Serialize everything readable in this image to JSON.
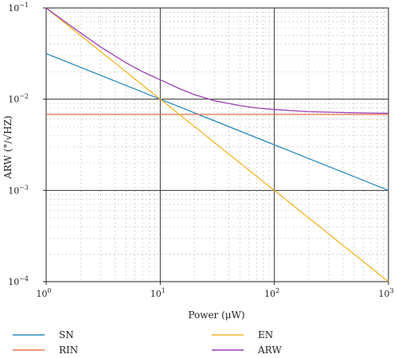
{
  "chart_data": {
    "type": "line",
    "title": "",
    "xlabel": "Power (μW)",
    "ylabel": "ARW (°/√HZ)",
    "x_scale": "log",
    "y_scale": "log",
    "xlim": [
      1,
      1000
    ],
    "ylim": [
      0.0001,
      0.1
    ],
    "x_ticks": [
      {
        "value": 1,
        "base": "10",
        "exp": "0"
      },
      {
        "value": 10,
        "base": "10",
        "exp": "1"
      },
      {
        "value": 100,
        "base": "10",
        "exp": "2"
      },
      {
        "value": 1000,
        "base": "10",
        "exp": "3"
      }
    ],
    "y_ticks": [
      {
        "value": 0.0001,
        "base": "10",
        "exp": "−4"
      },
      {
        "value": 0.001,
        "base": "10",
        "exp": "−3"
      },
      {
        "value": 0.01,
        "base": "10",
        "exp": "−2"
      },
      {
        "value": 0.1,
        "base": "10",
        "exp": "−1"
      }
    ],
    "grid": {
      "major": true,
      "minor": "dotted"
    },
    "legend_position": "bottom",
    "series": [
      {
        "name": "SN",
        "color": "#2b8cbe",
        "points": [
          [
            1,
            0.0316
          ],
          [
            10,
            0.01
          ],
          [
            100,
            0.00316
          ],
          [
            1000,
            0.001
          ]
        ]
      },
      {
        "name": "RIN",
        "color": "#e8704a",
        "points": [
          [
            1,
            0.0068
          ],
          [
            1000,
            0.0068
          ]
        ]
      },
      {
        "name": "EN",
        "color": "#f0b429",
        "points": [
          [
            1,
            0.1
          ],
          [
            10,
            0.01
          ],
          [
            100,
            0.001
          ],
          [
            1000,
            0.0001
          ]
        ]
      },
      {
        "name": "ARW",
        "color": "#9b3fb5",
        "points": [
          [
            1,
            0.1
          ],
          [
            1.5,
            0.069
          ],
          [
            2,
            0.0533
          ],
          [
            3,
            0.0374
          ],
          [
            5,
            0.0251
          ],
          [
            7,
            0.02
          ],
          [
            10,
            0.0163
          ],
          [
            15,
            0.0129
          ],
          [
            20,
            0.0112
          ],
          [
            30,
            0.0096
          ],
          [
            50,
            0.0085
          ],
          [
            70,
            0.008
          ],
          [
            100,
            0.0077
          ],
          [
            200,
            0.0073
          ],
          [
            300,
            0.0072
          ],
          [
            500,
            0.0071
          ],
          [
            700,
            0.00704
          ],
          [
            1000,
            0.007
          ]
        ]
      }
    ]
  }
}
